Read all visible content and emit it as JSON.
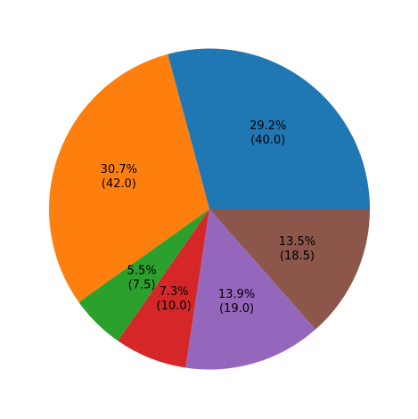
{
  "chart_data": {
    "type": "pie",
    "title": "",
    "values": [
      40.0,
      42.0,
      7.5,
      10.0,
      19.0,
      18.5
    ],
    "colors": [
      "#1f77b4",
      "#ff7f0e",
      "#2ca02c",
      "#d62728",
      "#9467bd",
      "#8c564b"
    ],
    "labels": [
      {
        "pct": "29.2%",
        "value": "(40.0)"
      },
      {
        "pct": "30.7%",
        "value": "(42.0)"
      },
      {
        "pct": "5.5%",
        "value": "(7.5)"
      },
      {
        "pct": "7.3%",
        "value": "(10.0)"
      },
      {
        "pct": "13.9%",
        "value": "(19.0)"
      },
      {
        "pct": "13.5%",
        "value": "(18.5)"
      }
    ],
    "start_angle": 0,
    "direction": "counterclockwise",
    "legend": "none"
  }
}
